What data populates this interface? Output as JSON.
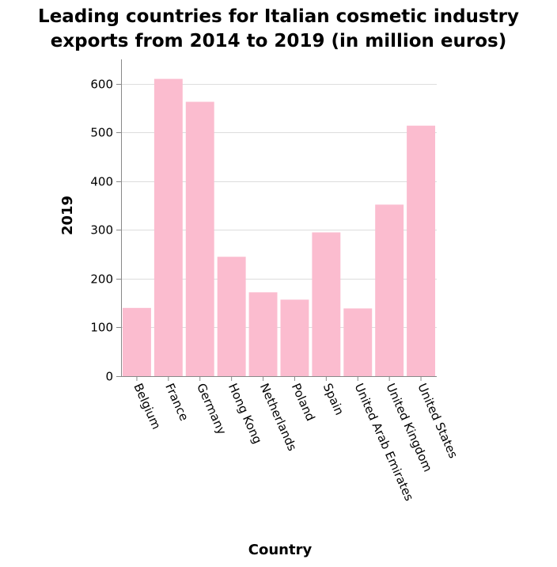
{
  "chart_data": {
    "type": "bar",
    "title_lines": [
      "Leading countries for Italian cosmetic industry",
      "exports from 2014 to 2019 (in million euros)"
    ],
    "xlabel": "Country",
    "ylabel": "2019",
    "ylim": [
      0,
      650
    ],
    "yticks": [
      0,
      100,
      200,
      300,
      400,
      500,
      600
    ],
    "grid": true,
    "bar_color": "#fbbccf",
    "categories": [
      "Belgium",
      "France",
      "Germany",
      "Hong Kong",
      "Netherlands",
      "Poland",
      "Spain",
      "United Arab Emirates",
      "United Kingdom",
      "United States"
    ],
    "values": [
      140,
      610,
      563,
      245,
      172,
      157,
      295,
      139,
      352,
      514
    ]
  }
}
